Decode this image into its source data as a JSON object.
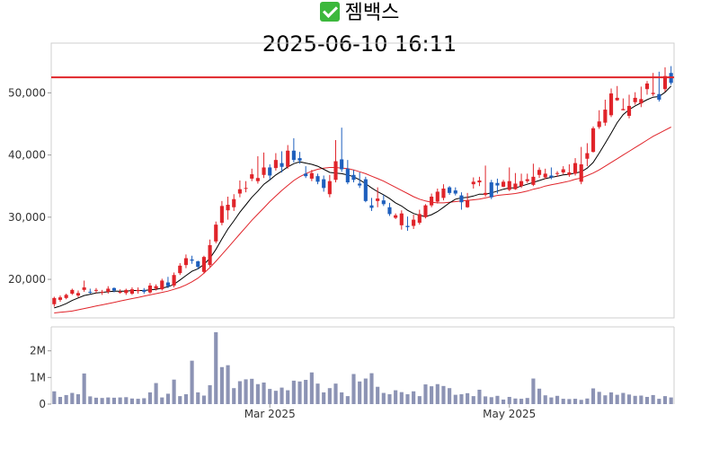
{
  "header": {
    "check_icon": "check-box-icon",
    "company": "젬백스",
    "timestamp": "2025-06-10 16:11"
  },
  "colors": {
    "up": "#e0242a",
    "down": "#1e5fbd",
    "ma_short": "#000000",
    "ma_long": "#e0242a",
    "volume": "#8c93b4",
    "ref_line": "#e0242a"
  },
  "chart_data": [
    {
      "type": "candlestick",
      "title": "",
      "ylim": [
        13800,
        58000
      ],
      "y_ticks": [
        20000,
        30000,
        40000,
        50000
      ],
      "y_tick_labels": [
        "20,000",
        "30,000",
        "40,000",
        "50,000"
      ],
      "x_tick_labels": [
        {
          "index": 36,
          "label": "Mar 2025"
        },
        {
          "index": 76,
          "label": "May 2025"
        }
      ],
      "reference_line": 52500,
      "open": [
        16000,
        16700,
        17000,
        17700,
        17400,
        18300,
        18000,
        18200,
        17900,
        18000,
        18600,
        18000,
        17800,
        17700,
        18100,
        18300,
        17900,
        18500,
        18400,
        19500,
        19000,
        21000,
        22300,
        23200,
        22900,
        21200,
        22300,
        26100,
        29100,
        31100,
        31600,
        33800,
        34600,
        36200,
        35800,
        36800,
        38000,
        37900,
        38700,
        38100,
        40700,
        39500,
        37000,
        36200,
        36600,
        36100,
        33700,
        36000,
        39300,
        37800,
        36800,
        35400,
        36100,
        31900,
        32600,
        32700,
        31600,
        29900,
        28700,
        28600,
        28600,
        29100,
        30000,
        31900,
        32500,
        33100,
        34800,
        34300,
        33500,
        31600,
        35300,
        35600,
        33600,
        35600,
        35500,
        34900,
        34400,
        34500,
        35000,
        35800,
        35200,
        36800,
        36400,
        36700,
        37100,
        37200,
        36800,
        37000,
        35700,
        39400,
        40500,
        44500,
        45200,
        46400,
        48800,
        47200,
        46300,
        48500,
        48300,
        50600,
        49800,
        49800,
        50600,
        53200
      ],
      "close": [
        17000,
        17100,
        17500,
        18300,
        17800,
        18700,
        17900,
        18300,
        18000,
        18500,
        18200,
        18000,
        18300,
        18400,
        18300,
        18000,
        19000,
        18900,
        19800,
        18900,
        20700,
        22200,
        23400,
        23000,
        22000,
        23600,
        25500,
        28800,
        31800,
        32000,
        32900,
        34500,
        34700,
        36900,
        36300,
        38000,
        36700,
        39200,
        38100,
        40700,
        39200,
        39100,
        36600,
        37100,
        35700,
        34700,
        35800,
        39000,
        37700,
        35600,
        36000,
        35100,
        32600,
        31500,
        33000,
        32100,
        30500,
        30300,
        30600,
        28400,
        29600,
        30500,
        31900,
        33300,
        34100,
        34600,
        33900,
        33800,
        32400,
        32700,
        35700,
        35900,
        33900,
        33200,
        35100,
        35700,
        35800,
        35400,
        35800,
        36100,
        36500,
        37600,
        37000,
        36400,
        37100,
        37700,
        37200,
        38700,
        38500,
        40300,
        44300,
        45400,
        47300,
        49900,
        49200,
        47400,
        47900,
        49200,
        49000,
        51500,
        50000,
        48900,
        52700,
        51600
      ],
      "high": [
        17200,
        17400,
        17700,
        18500,
        18200,
        19800,
        18500,
        18600,
        18300,
        18900,
        18700,
        18400,
        18500,
        18700,
        18700,
        18600,
        19400,
        19200,
        20100,
        20400,
        21100,
        22600,
        24000,
        23800,
        23000,
        23800,
        26400,
        29300,
        32600,
        33300,
        33700,
        35900,
        35800,
        37800,
        39800,
        40400,
        38500,
        40300,
        40600,
        41600,
        42700,
        40500,
        38200,
        37600,
        37000,
        36700,
        36800,
        42400,
        44400,
        39200,
        37600,
        37200,
        36500,
        33100,
        34800,
        33600,
        32300,
        30600,
        31100,
        30100,
        30400,
        31200,
        32100,
        33800,
        34600,
        35300,
        35000,
        34800,
        34000,
        33900,
        36400,
        36500,
        38300,
        36000,
        36200,
        36000,
        38000,
        37100,
        37000,
        37000,
        38600,
        38000,
        37800,
        38000,
        37400,
        38200,
        38500,
        39500,
        41300,
        41900,
        44600,
        47200,
        48900,
        50700,
        51100,
        49100,
        49700,
        50100,
        51000,
        51900,
        53200,
        53400,
        54100,
        54300
      ],
      "low": [
        15600,
        16400,
        16800,
        17500,
        17100,
        18000,
        17700,
        17800,
        17500,
        17700,
        17900,
        17700,
        17500,
        17500,
        17700,
        17700,
        17700,
        18200,
        18200,
        18600,
        18700,
        20700,
        21800,
        22500,
        21600,
        20900,
        22000,
        25800,
        28700,
        29600,
        31000,
        33200,
        34000,
        35800,
        35400,
        36300,
        36000,
        37500,
        37200,
        37800,
        38800,
        38600,
        36300,
        35800,
        35300,
        34100,
        33200,
        35600,
        37300,
        35300,
        35600,
        34700,
        32400,
        31000,
        31600,
        31800,
        30200,
        29700,
        28000,
        27800,
        28100,
        28800,
        29800,
        31600,
        32200,
        32700,
        33600,
        33500,
        31200,
        31500,
        34600,
        35000,
        33300,
        32900,
        33800,
        34800,
        34200,
        34400,
        34700,
        35500,
        35000,
        36300,
        36100,
        36100,
        36500,
        36900,
        36500,
        36700,
        35300,
        38200,
        40400,
        44200,
        44700,
        46100,
        48700,
        47200,
        45900,
        48100,
        47700,
        49700,
        49500,
        48600,
        50200,
        51300
      ],
      "ma_short": [
        15400,
        15700,
        16100,
        16600,
        17000,
        17400,
        17600,
        17800,
        17900,
        18000,
        18100,
        18100,
        18100,
        18200,
        18200,
        18200,
        18300,
        18400,
        18600,
        18800,
        19200,
        19900,
        20600,
        21300,
        21700,
        22400,
        23400,
        24800,
        26500,
        28100,
        29400,
        30800,
        32000,
        33200,
        34200,
        35300,
        36000,
        36800,
        37400,
        38100,
        38600,
        38900,
        38700,
        38500,
        38200,
        37700,
        37200,
        37100,
        37000,
        36800,
        36500,
        36000,
        35400,
        34700,
        34100,
        33600,
        33000,
        32300,
        31800,
        31100,
        30600,
        30300,
        30100,
        30400,
        30900,
        31600,
        32300,
        32900,
        33100,
        33200,
        33400,
        33700,
        33700,
        33900,
        34200,
        34500,
        34700,
        34700,
        35000,
        35300,
        35600,
        35900,
        36200,
        36400,
        36600,
        36800,
        36900,
        37100,
        37300,
        37900,
        38800,
        40300,
        41900,
        43500,
        45200,
        46500,
        47300,
        47900,
        48400,
        48900,
        49300,
        49400,
        50100,
        51100
      ],
      "ma_long": [
        14600,
        14700,
        14800,
        14900,
        15100,
        15300,
        15500,
        15700,
        15900,
        16100,
        16300,
        16500,
        16700,
        16900,
        17100,
        17300,
        17500,
        17700,
        17900,
        18100,
        18400,
        18700,
        19100,
        19600,
        20200,
        21000,
        21900,
        22900,
        24000,
        25100,
        26200,
        27300,
        28400,
        29500,
        30500,
        31500,
        32500,
        33400,
        34300,
        35100,
        35900,
        36500,
        37000,
        37400,
        37700,
        37900,
        38000,
        38000,
        37900,
        37800,
        37600,
        37300,
        37000,
        36600,
        36200,
        35800,
        35300,
        34800,
        34300,
        33800,
        33300,
        32900,
        32600,
        32400,
        32300,
        32300,
        32400,
        32500,
        32600,
        32700,
        32800,
        32900,
        33100,
        33300,
        33500,
        33600,
        33700,
        33800,
        34000,
        34200,
        34500,
        34700,
        35000,
        35200,
        35400,
        35600,
        35800,
        36100,
        36300,
        36700,
        37100,
        37600,
        38200,
        38800,
        39400,
        40000,
        40600,
        41200,
        41800,
        42400,
        43000,
        43500,
        44000,
        44500
      ]
    },
    {
      "type": "bar",
      "title": "",
      "ylim": [
        0,
        2900000
      ],
      "y_ticks": [
        0,
        1000000,
        2000000
      ],
      "y_tick_labels": [
        "0",
        "1M",
        "2M"
      ],
      "values": [
        480000,
        270000,
        340000,
        420000,
        370000,
        1150000,
        290000,
        240000,
        230000,
        250000,
        240000,
        250000,
        260000,
        210000,
        200000,
        220000,
        440000,
        790000,
        250000,
        390000,
        920000,
        300000,
        370000,
        1630000,
        440000,
        320000,
        710000,
        2700000,
        1390000,
        1460000,
        600000,
        860000,
        930000,
        950000,
        750000,
        810000,
        570000,
        500000,
        620000,
        520000,
        880000,
        850000,
        910000,
        1190000,
        770000,
        440000,
        600000,
        770000,
        440000,
        300000,
        1130000,
        850000,
        960000,
        1160000,
        650000,
        420000,
        370000,
        520000,
        450000,
        370000,
        480000,
        300000,
        740000,
        670000,
        750000,
        680000,
        600000,
        350000,
        370000,
        410000,
        300000,
        540000,
        290000,
        260000,
        310000,
        170000,
        270000,
        210000,
        200000,
        230000,
        960000,
        580000,
        330000,
        250000,
        310000,
        200000,
        190000,
        200000,
        160000,
        210000,
        590000,
        460000,
        330000,
        440000,
        350000,
        420000,
        360000,
        310000,
        320000,
        270000,
        340000,
        200000,
        300000,
        250000
      ]
    }
  ]
}
